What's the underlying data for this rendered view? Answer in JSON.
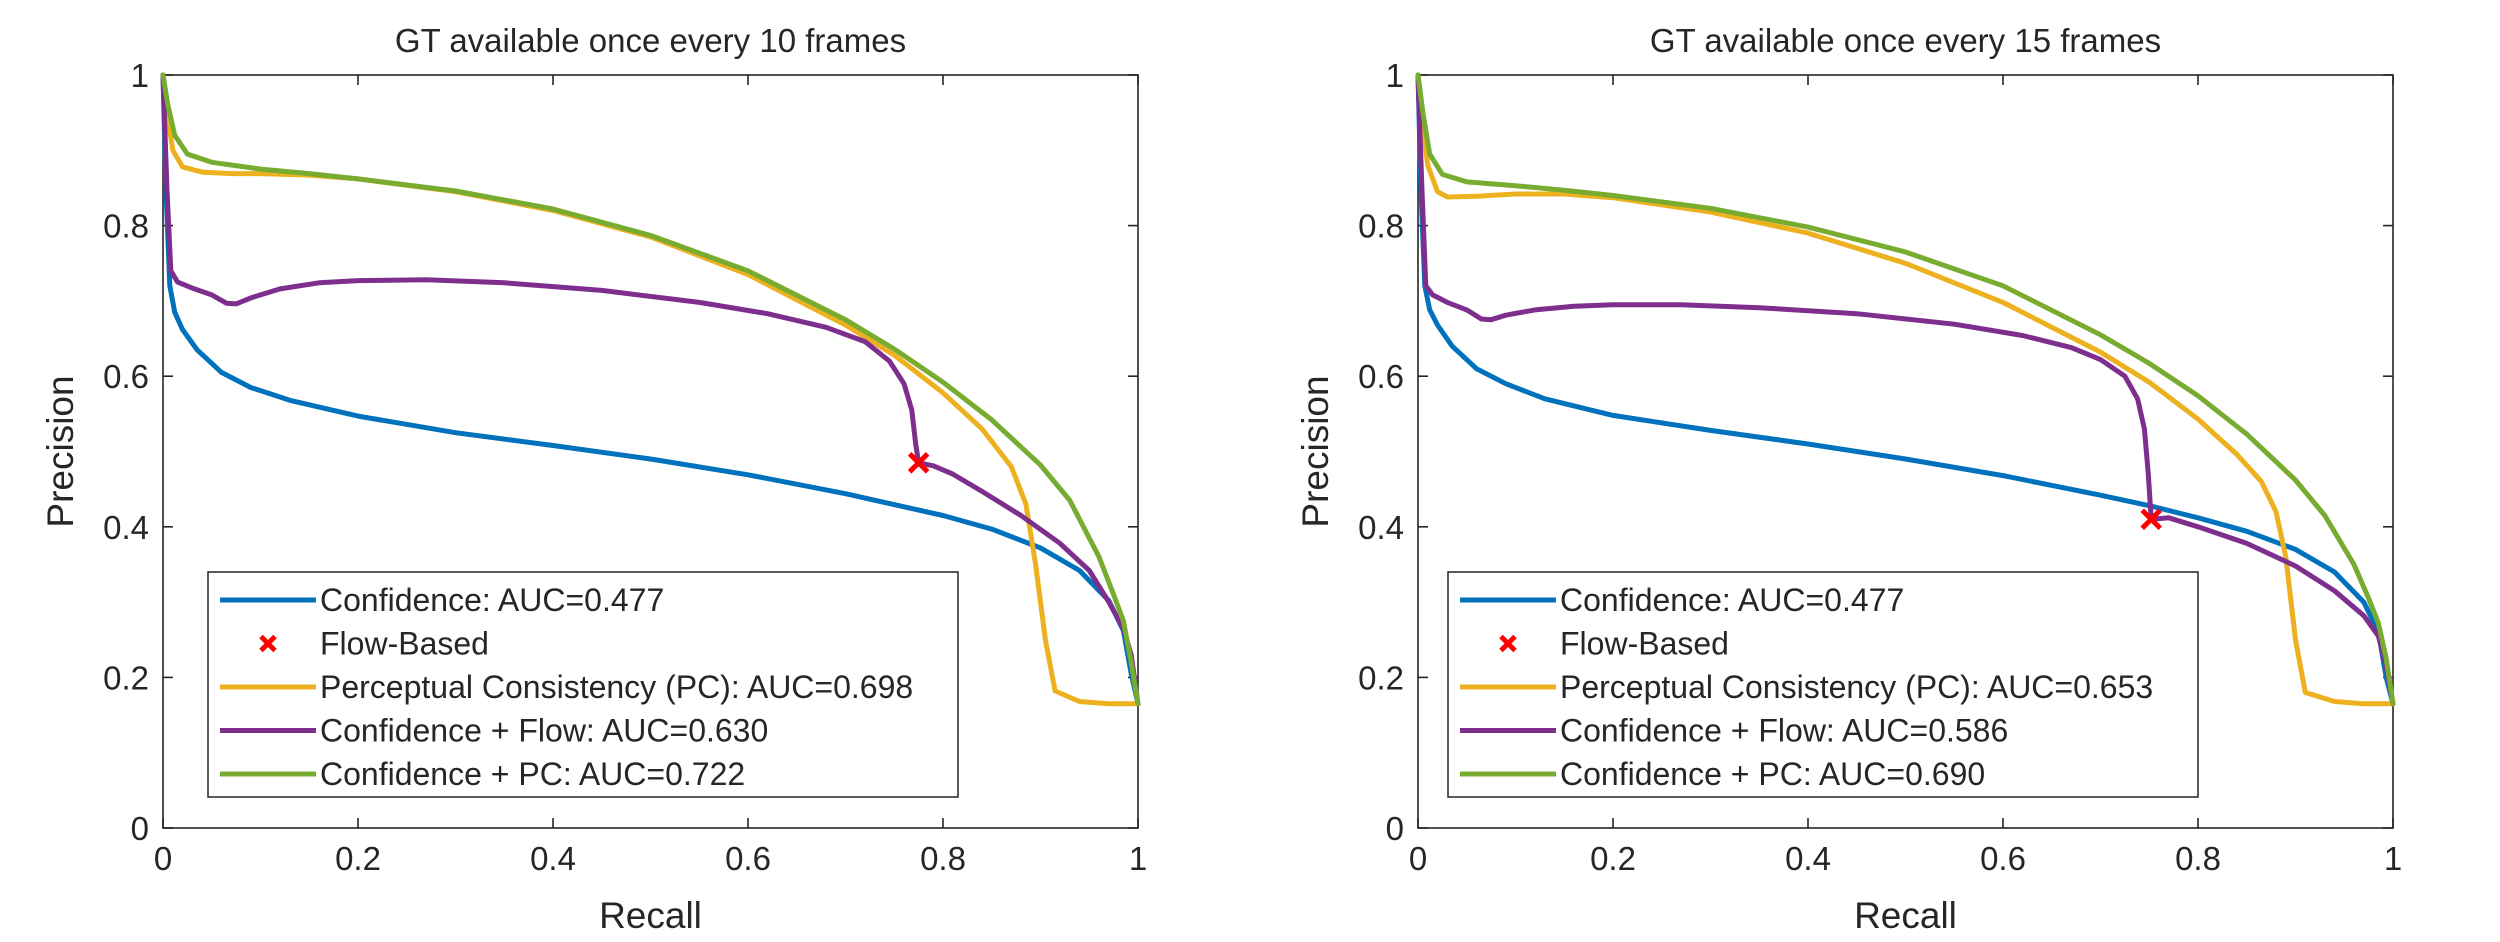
{
  "colors": {
    "confidence": "#0072BD",
    "flow": "#FF0000",
    "pc": "#EDB120",
    "conf_flow": "#7E2F8E",
    "conf_pc": "#77AC30",
    "axis": "#262626"
  },
  "chart_data": [
    {
      "type": "line",
      "title": "GT available once every 10 frames",
      "xlabel": "Recall",
      "ylabel": "Precision",
      "xlim": [
        0,
        1
      ],
      "ylim": [
        0,
        1
      ],
      "xticks": [
        0,
        0.2,
        0.4,
        0.6,
        0.8,
        1
      ],
      "xtick_labels": [
        "0",
        "0.2",
        "0.4",
        "0.6",
        "0.8",
        "1"
      ],
      "yticks": [
        0,
        0.2,
        0.4,
        0.6,
        0.8,
        1
      ],
      "ytick_labels": [
        "0",
        "0.2",
        "0.4",
        "0.6",
        "0.8",
        "1"
      ],
      "legend_position": "bottom-left",
      "series": [
        {
          "name": "Confidence: AUC=0.477",
          "key": "confidence",
          "style": "line",
          "points": [
            [
              0.0,
              1.0
            ],
            [
              0.003,
              0.85
            ],
            [
              0.007,
              0.72
            ],
            [
              0.012,
              0.685
            ],
            [
              0.02,
              0.662
            ],
            [
              0.035,
              0.635
            ],
            [
              0.06,
              0.605
            ],
            [
              0.09,
              0.585
            ],
            [
              0.13,
              0.568
            ],
            [
              0.2,
              0.547
            ],
            [
              0.3,
              0.525
            ],
            [
              0.4,
              0.508
            ],
            [
              0.5,
              0.49
            ],
            [
              0.6,
              0.469
            ],
            [
              0.7,
              0.444
            ],
            [
              0.8,
              0.415
            ],
            [
              0.85,
              0.397
            ],
            [
              0.9,
              0.372
            ],
            [
              0.94,
              0.342
            ],
            [
              0.97,
              0.302
            ],
            [
              0.985,
              0.262
            ],
            [
              0.993,
              0.205
            ],
            [
              1.0,
              0.165
            ]
          ]
        },
        {
          "name": "Flow-Based",
          "key": "flow",
          "style": "marker",
          "points": [
            [
              0.775,
              0.485
            ]
          ]
        },
        {
          "name": "Perceptual Consistency (PC): AUC=0.698",
          "key": "pc",
          "style": "line",
          "points": [
            [
              0.0,
              1.0
            ],
            [
              0.004,
              0.95
            ],
            [
              0.01,
              0.9
            ],
            [
              0.02,
              0.878
            ],
            [
              0.04,
              0.871
            ],
            [
              0.07,
              0.869
            ],
            [
              0.1,
              0.869
            ],
            [
              0.15,
              0.867
            ],
            [
              0.2,
              0.862
            ],
            [
              0.3,
              0.845
            ],
            [
              0.4,
              0.82
            ],
            [
              0.5,
              0.785
            ],
            [
              0.6,
              0.735
            ],
            [
              0.7,
              0.668
            ],
            [
              0.75,
              0.628
            ],
            [
              0.8,
              0.578
            ],
            [
              0.84,
              0.53
            ],
            [
              0.87,
              0.48
            ],
            [
              0.885,
              0.43
            ],
            [
              0.895,
              0.35
            ],
            [
              0.905,
              0.25
            ],
            [
              0.915,
              0.182
            ],
            [
              0.94,
              0.168
            ],
            [
              0.97,
              0.165
            ],
            [
              1.0,
              0.165
            ]
          ]
        },
        {
          "name": "Confidence + Flow: AUC=0.630",
          "key": "conf_flow",
          "style": "line",
          "points": [
            [
              0.0,
              1.0
            ],
            [
              0.004,
              0.85
            ],
            [
              0.008,
              0.74
            ],
            [
              0.015,
              0.725
            ],
            [
              0.03,
              0.717
            ],
            [
              0.05,
              0.708
            ],
            [
              0.065,
              0.697
            ],
            [
              0.075,
              0.696
            ],
            [
              0.09,
              0.704
            ],
            [
              0.12,
              0.716
            ],
            [
              0.16,
              0.724
            ],
            [
              0.2,
              0.727
            ],
            [
              0.27,
              0.728
            ],
            [
              0.35,
              0.724
            ],
            [
              0.45,
              0.714
            ],
            [
              0.55,
              0.698
            ],
            [
              0.62,
              0.683
            ],
            [
              0.68,
              0.665
            ],
            [
              0.72,
              0.646
            ],
            [
              0.745,
              0.62
            ],
            [
              0.76,
              0.59
            ],
            [
              0.768,
              0.555
            ],
            [
              0.772,
              0.51
            ],
            [
              0.775,
              0.485
            ],
            [
              0.79,
              0.481
            ],
            [
              0.81,
              0.47
            ],
            [
              0.84,
              0.447
            ],
            [
              0.88,
              0.415
            ],
            [
              0.92,
              0.378
            ],
            [
              0.95,
              0.342
            ],
            [
              0.97,
              0.3
            ],
            [
              0.985,
              0.265
            ],
            [
              0.993,
              0.23
            ],
            [
              1.0,
              0.165
            ]
          ]
        },
        {
          "name": "Confidence + PC: AUC=0.722",
          "key": "conf_pc",
          "style": "line",
          "points": [
            [
              0.0,
              1.0
            ],
            [
              0.005,
              0.96
            ],
            [
              0.012,
              0.92
            ],
            [
              0.025,
              0.895
            ],
            [
              0.05,
              0.884
            ],
            [
              0.1,
              0.875
            ],
            [
              0.15,
              0.869
            ],
            [
              0.2,
              0.862
            ],
            [
              0.3,
              0.846
            ],
            [
              0.4,
              0.822
            ],
            [
              0.5,
              0.787
            ],
            [
              0.6,
              0.74
            ],
            [
              0.7,
              0.675
            ],
            [
              0.75,
              0.636
            ],
            [
              0.8,
              0.592
            ],
            [
              0.85,
              0.542
            ],
            [
              0.9,
              0.482
            ],
            [
              0.93,
              0.435
            ],
            [
              0.96,
              0.36
            ],
            [
              0.975,
              0.31
            ],
            [
              0.985,
              0.275
            ],
            [
              0.993,
              0.22
            ],
            [
              1.0,
              0.165
            ]
          ]
        }
      ]
    },
    {
      "type": "line",
      "title": "GT available once every 15 frames",
      "xlabel": "Recall",
      "ylabel": "Precision",
      "xlim": [
        0,
        1
      ],
      "ylim": [
        0,
        1
      ],
      "xticks": [
        0,
        0.2,
        0.4,
        0.6,
        0.8,
        1
      ],
      "xtick_labels": [
        "0",
        "0.2",
        "0.4",
        "0.6",
        "0.8",
        "1"
      ],
      "yticks": [
        0,
        0.2,
        0.4,
        0.6,
        0.8,
        1
      ],
      "ytick_labels": [
        "0",
        "0.2",
        "0.4",
        "0.6",
        "0.8",
        "1"
      ],
      "legend_position": "bottom-left",
      "series": [
        {
          "name": "Confidence: AUC=0.477",
          "key": "confidence",
          "style": "line",
          "points": [
            [
              0.0,
              1.0
            ],
            [
              0.003,
              0.85
            ],
            [
              0.007,
              0.72
            ],
            [
              0.012,
              0.688
            ],
            [
              0.02,
              0.668
            ],
            [
              0.035,
              0.64
            ],
            [
              0.06,
              0.61
            ],
            [
              0.09,
              0.59
            ],
            [
              0.13,
              0.57
            ],
            [
              0.2,
              0.548
            ],
            [
              0.3,
              0.528
            ],
            [
              0.4,
              0.51
            ],
            [
              0.5,
              0.49
            ],
            [
              0.6,
              0.468
            ],
            [
              0.7,
              0.442
            ],
            [
              0.75,
              0.428
            ],
            [
              0.8,
              0.412
            ],
            [
              0.85,
              0.394
            ],
            [
              0.9,
              0.37
            ],
            [
              0.94,
              0.34
            ],
            [
              0.97,
              0.3
            ],
            [
              0.985,
              0.26
            ],
            [
              0.993,
              0.2
            ],
            [
              1.0,
              0.165
            ]
          ]
        },
        {
          "name": "Flow-Based",
          "key": "flow",
          "style": "marker",
          "points": [
            [
              0.752,
              0.41
            ]
          ]
        },
        {
          "name": "Perceptual Consistency (PC): AUC=0.653",
          "key": "pc",
          "style": "line",
          "points": [
            [
              0.0,
              1.0
            ],
            [
              0.004,
              0.94
            ],
            [
              0.01,
              0.88
            ],
            [
              0.02,
              0.845
            ],
            [
              0.03,
              0.838
            ],
            [
              0.06,
              0.839
            ],
            [
              0.1,
              0.842
            ],
            [
              0.15,
              0.842
            ],
            [
              0.2,
              0.837
            ],
            [
              0.3,
              0.818
            ],
            [
              0.4,
              0.79
            ],
            [
              0.5,
              0.75
            ],
            [
              0.6,
              0.698
            ],
            [
              0.7,
              0.632
            ],
            [
              0.75,
              0.592
            ],
            [
              0.8,
              0.543
            ],
            [
              0.84,
              0.496
            ],
            [
              0.865,
              0.46
            ],
            [
              0.88,
              0.42
            ],
            [
              0.89,
              0.36
            ],
            [
              0.9,
              0.25
            ],
            [
              0.91,
              0.18
            ],
            [
              0.94,
              0.168
            ],
            [
              0.97,
              0.165
            ],
            [
              1.0,
              0.165
            ]
          ]
        },
        {
          "name": "Confidence + Flow: AUC=0.586",
          "key": "conf_flow",
          "style": "line",
          "points": [
            [
              0.0,
              1.0
            ],
            [
              0.004,
              0.85
            ],
            [
              0.008,
              0.72
            ],
            [
              0.015,
              0.708
            ],
            [
              0.03,
              0.698
            ],
            [
              0.05,
              0.688
            ],
            [
              0.065,
              0.676
            ],
            [
              0.075,
              0.675
            ],
            [
              0.09,
              0.681
            ],
            [
              0.12,
              0.688
            ],
            [
              0.16,
              0.693
            ],
            [
              0.2,
              0.695
            ],
            [
              0.27,
              0.695
            ],
            [
              0.35,
              0.691
            ],
            [
              0.45,
              0.683
            ],
            [
              0.55,
              0.669
            ],
            [
              0.62,
              0.654
            ],
            [
              0.67,
              0.638
            ],
            [
              0.7,
              0.622
            ],
            [
              0.725,
              0.6
            ],
            [
              0.738,
              0.57
            ],
            [
              0.745,
              0.53
            ],
            [
              0.749,
              0.47
            ],
            [
              0.752,
              0.41
            ],
            [
              0.77,
              0.412
            ],
            [
              0.8,
              0.4
            ],
            [
              0.85,
              0.378
            ],
            [
              0.9,
              0.348
            ],
            [
              0.94,
              0.315
            ],
            [
              0.97,
              0.282
            ],
            [
              0.985,
              0.255
            ],
            [
              0.993,
              0.215
            ],
            [
              1.0,
              0.165
            ]
          ]
        },
        {
          "name": "Confidence + PC: AUC=0.690",
          "key": "conf_pc",
          "style": "line",
          "points": [
            [
              0.0,
              1.0
            ],
            [
              0.005,
              0.95
            ],
            [
              0.012,
              0.895
            ],
            [
              0.025,
              0.868
            ],
            [
              0.05,
              0.858
            ],
            [
              0.1,
              0.853
            ],
            [
              0.15,
              0.847
            ],
            [
              0.2,
              0.84
            ],
            [
              0.3,
              0.823
            ],
            [
              0.4,
              0.798
            ],
            [
              0.5,
              0.765
            ],
            [
              0.6,
              0.72
            ],
            [
              0.7,
              0.655
            ],
            [
              0.75,
              0.617
            ],
            [
              0.8,
              0.574
            ],
            [
              0.85,
              0.523
            ],
            [
              0.9,
              0.462
            ],
            [
              0.93,
              0.415
            ],
            [
              0.96,
              0.35
            ],
            [
              0.975,
              0.305
            ],
            [
              0.985,
              0.272
            ],
            [
              0.993,
              0.225
            ],
            [
              1.0,
              0.165
            ]
          ]
        }
      ]
    }
  ]
}
